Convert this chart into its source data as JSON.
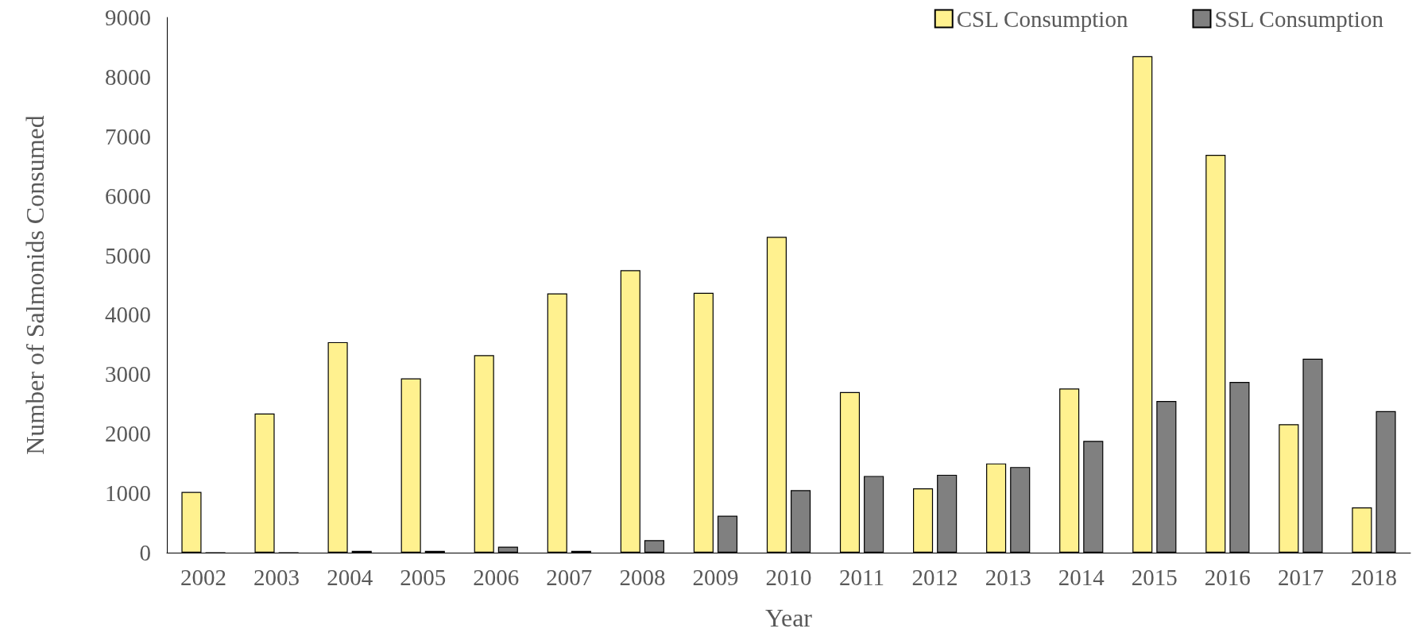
{
  "chart_data": {
    "type": "bar",
    "xlabel": "Year",
    "ylabel": "Number of Salmonids Consumed",
    "categories": [
      "2002",
      "2003",
      "2004",
      "2005",
      "2006",
      "2007",
      "2008",
      "2009",
      "2010",
      "2011",
      "2012",
      "2013",
      "2014",
      "2015",
      "2016",
      "2017",
      "2018"
    ],
    "series": [
      {
        "name": "CSL Consumption",
        "color": "#fff18f",
        "values": [
          1020,
          2340,
          3540,
          2930,
          3320,
          4360,
          4750,
          4370,
          5310,
          2700,
          1080,
          1500,
          2760,
          8350,
          6690,
          2160,
          760
        ]
      },
      {
        "name": "SSL Consumption",
        "color": "#808080",
        "values": [
          0,
          0,
          30,
          30,
          100,
          30,
          210,
          620,
          1050,
          1290,
          1310,
          1440,
          1880,
          2550,
          2870,
          3260,
          2380
        ]
      }
    ],
    "ylim": [
      0,
      9000
    ],
    "yticks": [
      0,
      1000,
      2000,
      3000,
      4000,
      5000,
      6000,
      7000,
      8000,
      9000
    ],
    "grid": false,
    "legend": "top right"
  }
}
